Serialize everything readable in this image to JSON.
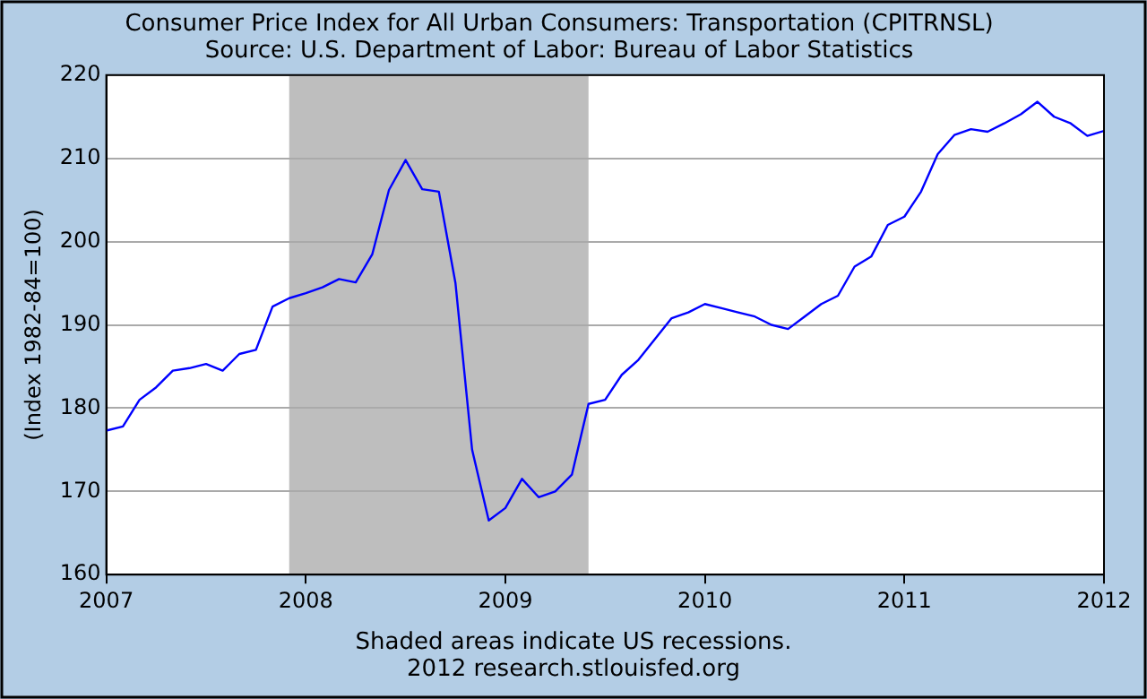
{
  "chart_data": {
    "type": "line",
    "title": [
      "Consumer Price Index for All Urban Consumers: Transportation (CPITRNSL)",
      "Source: U.S. Department of Labor: Bureau of Labor Statistics"
    ],
    "ylabel": "(Index 1982-84=100)",
    "x": [
      "2007-01",
      "2007-02",
      "2007-03",
      "2007-04",
      "2007-05",
      "2007-06",
      "2007-07",
      "2007-08",
      "2007-09",
      "2007-10",
      "2007-11",
      "2007-12",
      "2008-01",
      "2008-02",
      "2008-03",
      "2008-04",
      "2008-05",
      "2008-06",
      "2008-07",
      "2008-08",
      "2008-09",
      "2008-10",
      "2008-11",
      "2008-12",
      "2009-01",
      "2009-02",
      "2009-03",
      "2009-04",
      "2009-05",
      "2009-06",
      "2009-07",
      "2009-08",
      "2009-09",
      "2009-10",
      "2009-11",
      "2009-12",
      "2010-01",
      "2010-02",
      "2010-03",
      "2010-04",
      "2010-05",
      "2010-06",
      "2010-07",
      "2010-08",
      "2010-09",
      "2010-10",
      "2010-11",
      "2010-12",
      "2011-01",
      "2011-02",
      "2011-03",
      "2011-04",
      "2011-05",
      "2011-06",
      "2011-07",
      "2011-08",
      "2011-09",
      "2011-10",
      "2011-11",
      "2011-12",
      "2012-01"
    ],
    "series": [
      {
        "color": "#0000ff",
        "values": [
          177.3,
          177.8,
          181.0,
          182.5,
          184.5,
          184.8,
          185.3,
          184.5,
          186.5,
          187.0,
          192.2,
          193.2,
          193.8,
          194.5,
          195.5,
          195.1,
          198.5,
          206.2,
          209.8,
          206.3,
          206.0,
          195.0,
          175.0,
          166.5,
          168.0,
          171.5,
          169.3,
          170.0,
          172.0,
          180.5,
          181.0,
          184.0,
          185.8,
          188.3,
          190.8,
          191.5,
          192.5,
          192.0,
          191.5,
          191.0,
          190.0,
          189.5,
          191.0,
          192.5,
          193.5,
          197.0,
          198.2,
          202.0,
          203.0,
          206.0,
          210.5,
          212.8,
          213.5,
          213.2,
          214.2,
          215.3,
          216.8,
          215.0,
          214.2,
          212.7,
          213.3
        ]
      }
    ],
    "xlim": [
      "2007",
      "2012"
    ],
    "xticks": [
      "2007",
      "2008",
      "2009",
      "2010",
      "2011",
      "2012"
    ],
    "ylim": [
      160,
      220
    ],
    "yticks": [
      160,
      170,
      180,
      190,
      200,
      210,
      220
    ],
    "bands": [
      {
        "axis": "x",
        "from": "2007-12",
        "to": "2009-06",
        "color": "#bebebe"
      }
    ],
    "grid": "y",
    "legend": false,
    "marker": "none",
    "line_style": "solid",
    "annotations": [
      "Shaded areas indicate US recessions.",
      "2012 research.stlouisfed.org"
    ]
  }
}
